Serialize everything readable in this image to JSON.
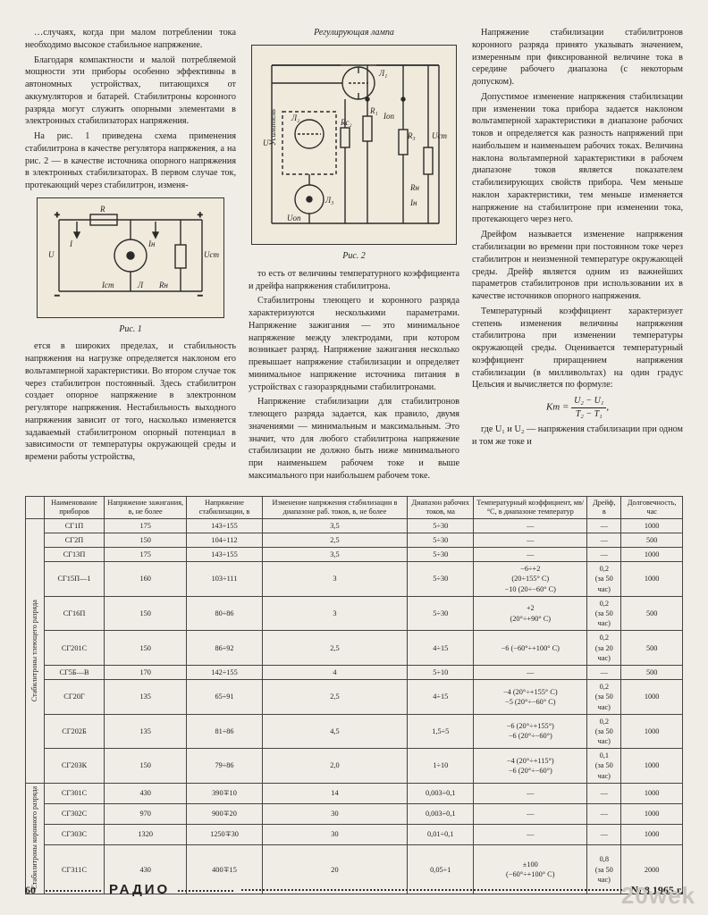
{
  "text": {
    "col1": {
      "p1": "…случаях, когда при малом потреблении тока необходимо высокое стабильное напряжение.",
      "p2": "Благодаря компактности и малой потребляемой мощности эти приборы особенно эффективны в автономных устройствах, питающихся от аккумуляторов и батарей. Стабилитроны коронного разряда могут служить опорными элементами в электронных стабилизаторах напряжения.",
      "p3": "На рис. 1 приведена схема применения стабилитрона в качестве регулятора напряжения, а на рис. 2 — в качестве источника опорного напряжения в электронных стабилизаторах. В первом случае ток, протекающий через стабилитрон, изменя-",
      "p4": "ется в широких пределах, и стабильность напряжения на нагрузке определяется наклоном его вольтамперной характеристики. Во втором случае ток через стабилитрон постоянный. Здесь стабилитрон создает опорное напряжение в электронном регуляторе напряжения. Нестабильность выходного напряжения зависит от того, насколько изменяется задаваемый стабилитроном опорный потенциал в зависимости от температуры окружающей среды и времени работы устройства,"
    },
    "col2": {
      "p1": "то есть от величины температурного коэффициента и дрейфа напряжения стабилитрона.",
      "p2": "Стабилитроны тлеющего и коронного разряда характеризуются несколькими параметрами. Напряжение зажигания — это минимальное напряжение между электродами, при котором возникает разряд. Напряжение зажигания несколько превышает напряжение стабилизации и определяет минимальное напряжение источника питания в устройствах с газоразрядными стабилитронами.",
      "p3": "Напряжение стабилизации для стабилитронов тлеющего разряда задается, как правило, двумя значениями — минимальным и максимальным. Это значит, что для любого стабилитрона напряжение стабилизации не должно быть ниже минимального при наименьшем рабочем токе и выше максимального при наибольшем рабочем токе."
    },
    "col3": {
      "p1": "Напряжение стабилизации стабилитронов коронного разряда принято указывать значением, измеренным при фиксированной величине тока в середине рабочего диапазона (с некоторым допуском).",
      "p2": "Допустимое изменение напряжения стабилизации при изменении тока прибора задается наклоном вольтамперной характеристики в диапазоне рабочих токов и определяется как разность напряжений при наибольшем и наименьшем рабочих токах. Величина наклона вольтамперной характеристики в рабочем диапазоне токов является показателем стабилизирующих свойств прибора. Чем меньше наклон характеристики, тем меньше изменяется напряжение на стабилитроне при изменении тока, протекающего через него.",
      "p3": "Дрейфом называется изменение напряжения стабилизации во времени при постоянном токе через стабилитрон и неизменной температуре окружающей среды. Дрейф является одним из важнейших параметров стабилитронов при использовании их в качестве источников опорного напряжения.",
      "p4": "Температурный коэффициент характеризует степень изменения величины напряжения стабилитрона при изменении температуры окружающей среды. Оценивается температурный коэффициент приращением напряжения стабилизации (в милливольтах) на один градус Цельсия и вычисляется по формуле:",
      "p5": "где U₁ и U₂ — напряжения стабилизации при одном и том же токе и"
    },
    "fig1_caption": "Рис. 1",
    "fig2_caption": "Рис. 2",
    "fig2_title": "Регулирующая лампа",
    "formula_lhs": "Kт =",
    "formula_num": "U₂ − U₁",
    "formula_den": "T₂ − T₁",
    "formula_tail": ","
  },
  "fig1": {
    "labels": [
      "R",
      "I",
      "Iн",
      "U",
      "Uст",
      "Iст",
      "Л",
      "Rн"
    ],
    "stroke": "#2a2a2a"
  },
  "fig2": {
    "labels": [
      "Л₁",
      "Л₂",
      "Rс₂",
      "R₁",
      "Iоп",
      "R₃",
      "Uст",
      "Л₃",
      "Rн",
      "Iн",
      "Uоп",
      "U",
      "Усилитель"
    ],
    "stroke": "#2a2a2a"
  },
  "table": {
    "headers": [
      "Наименование приборов",
      "Напряжение зажигания, в, не более",
      "Напряжение стабилизации, в",
      "Изменение напряжения стабилизации в диапазоне раб. токов, в, не более",
      "Диапазон рабочих токов, ма",
      "Температурный коэффициент, мв/°C, в диапазоне температур",
      "Дрейф, в",
      "Долговечность, час"
    ],
    "group1_label": "Стабилитроны тлеющего разряда",
    "group2_label": "Стабилитроны коронного разряда",
    "rows_g1": [
      [
        "СГ1П",
        "175",
        "143÷155",
        "3,5",
        "5÷30",
        "—",
        "—",
        "1000"
      ],
      [
        "СГ2П",
        "150",
        "104÷112",
        "2,5",
        "5÷30",
        "—",
        "—",
        "500"
      ],
      [
        "СГ13П",
        "175",
        "143÷155",
        "3,5",
        "5÷30",
        "—",
        "—",
        "1000"
      ],
      [
        "СГ15П—1",
        "160",
        "103÷111",
        "3",
        "5÷30",
        "−6÷+2\n(20÷155° C)\n−10 (20÷−60° C)",
        "0,2\n(за 50 час)",
        "1000"
      ],
      [
        "СГ16П",
        "150",
        "80÷86",
        "3",
        "5÷30",
        "+2\n(20°÷+90° C)",
        "0,2\n(за 50 час)",
        "500"
      ],
      [
        "СГ201С",
        "150",
        "86÷92",
        "2,5",
        "4÷15",
        "−6 (−60°÷+100° C)",
        "0,2\n(за 20 час)",
        "500"
      ],
      [
        "СГ5Б—В",
        "170",
        "142÷155",
        "4",
        "5÷10",
        "—",
        "—",
        "500"
      ],
      [
        "СГ20Г",
        "135",
        "65÷91",
        "2,5",
        "4÷15",
        "−4 (20°÷+155° C)\n−5 (20°÷−60° C)",
        "0,2\n(за 50 час)",
        "1000"
      ],
      [
        "СГ202Б",
        "135",
        "81÷86",
        "4,5",
        "1,5÷5",
        "−6 (20°÷+155°)\n−6 (20°÷−60°)",
        "0,2\n(за 50 час)",
        "1000"
      ],
      [
        "СГ203К",
        "150",
        "79÷86",
        "2,0",
        "1÷10",
        "−4 (20°÷+115°)\n−6 (20°÷−60°)",
        "0,1\n(за 50 час)",
        "1000"
      ]
    ],
    "rows_g2": [
      [
        "СГ301С",
        "430",
        "390∓10",
        "14",
        "0,003÷0,1",
        "—",
        "—",
        "1000"
      ],
      [
        "СГ302С",
        "970",
        "900∓20",
        "30",
        "0,003÷0,1",
        "—",
        "—",
        "1000"
      ],
      [
        "СГ303С",
        "1320",
        "1250∓30",
        "30",
        "0,01÷0,1",
        "—",
        "—",
        "1000"
      ],
      [
        "СГ311С",
        "430",
        "400∓15",
        "20",
        "0,05÷1",
        "±100\n(−60°÷+100° C)",
        "0,8\n(за 50 час)",
        "2000"
      ]
    ]
  },
  "footer": {
    "page": "60",
    "magazine": "РАДИО",
    "issue": "№ 8 1965 г."
  },
  "watermark": "20wek"
}
